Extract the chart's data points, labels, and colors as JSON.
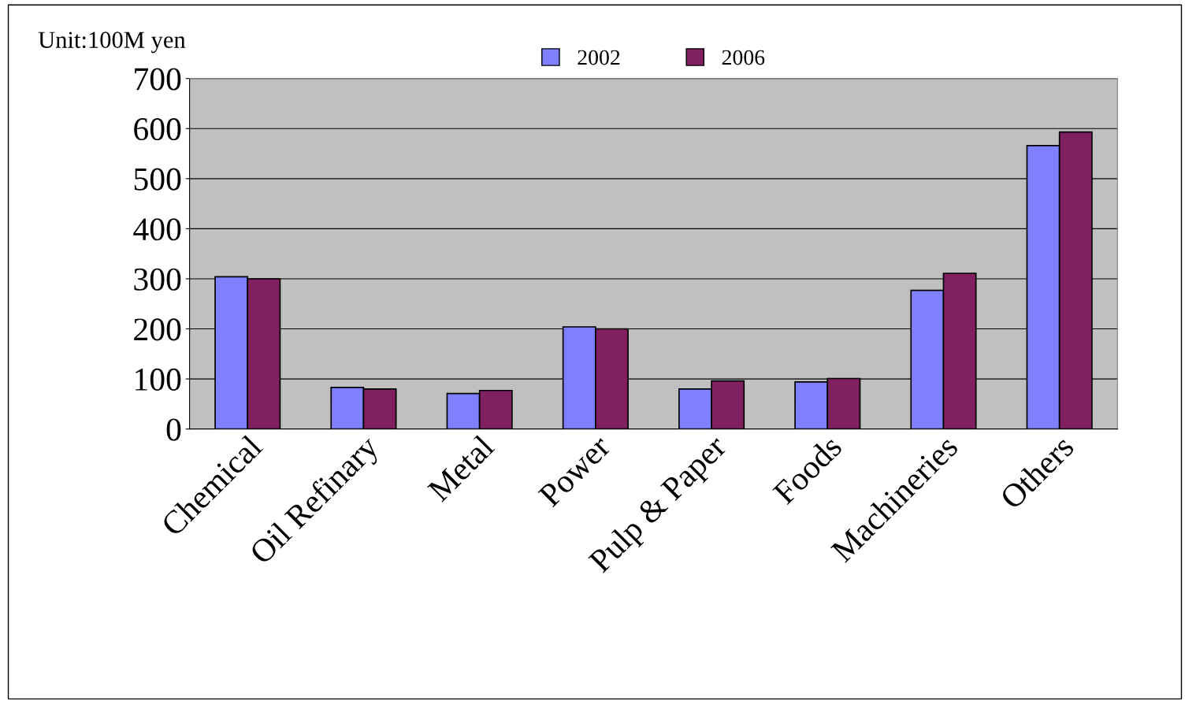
{
  "chart_data": {
    "type": "bar",
    "categories": [
      "Chemical",
      "Oil Refinary",
      "Metal",
      "Power",
      "Pulp & Paper",
      "Foods",
      "Machineries",
      "Others"
    ],
    "series": [
      {
        "name": "2002",
        "color": "#8080ff",
        "values": [
          304,
          83,
          71,
          204,
          80,
          94,
          277,
          566
        ]
      },
      {
        "name": "2006",
        "color": "#802060",
        "values": [
          300,
          80,
          77,
          200,
          96,
          101,
          311,
          593
        ]
      }
    ],
    "annotations": [
      "Unit:100M yen"
    ],
    "ylim": [
      0,
      700
    ],
    "yticks": [
      0,
      100,
      200,
      300,
      400,
      500,
      600,
      700
    ],
    "grid": "y",
    "legend": "top"
  }
}
